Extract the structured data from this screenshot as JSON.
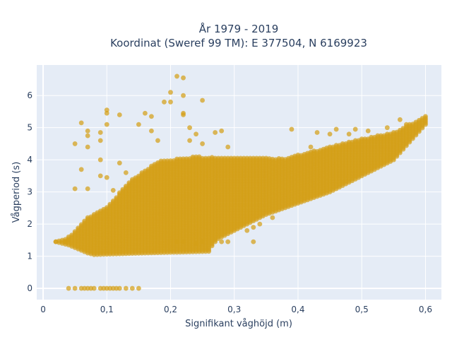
{
  "chart_data": {
    "type": "scatter",
    "title": [
      "År 1979 - 2019",
      "Koordinat (Sweref 99 TM): E 377504, N 6169923"
    ],
    "xlabel": "Signifikant våghöjd (m)",
    "ylabel": "Vågperiod (s)",
    "xlim": [
      -0.01,
      0.625
    ],
    "ylim": [
      -0.35,
      6.95
    ],
    "xticks": [
      0,
      0.1,
      0.2,
      0.3,
      0.4,
      0.5,
      0.6
    ],
    "xtick_labels": [
      "0",
      "0,1",
      "0,2",
      "0,3",
      "0,4",
      "0,5",
      "0,6"
    ],
    "yticks": [
      0,
      1,
      2,
      3,
      4,
      5,
      6
    ],
    "ytick_labels": [
      "0",
      "1",
      "2",
      "3",
      "4",
      "5",
      "6"
    ],
    "grid": true,
    "background": "#e5ecf6",
    "marker_color": "#d4a017",
    "band": {
      "x_step": 0.005,
      "x_start": 0.02,
      "x_end": 0.6,
      "lower": [
        [
          0.02,
          1.45
        ],
        [
          0.04,
          1.35
        ],
        [
          0.07,
          1.1
        ],
        [
          0.08,
          1.05
        ],
        [
          0.16,
          1.1
        ],
        [
          0.26,
          1.15
        ],
        [
          0.27,
          1.5
        ],
        [
          0.35,
          2.3
        ],
        [
          0.45,
          3.0
        ],
        [
          0.55,
          4.0
        ],
        [
          0.6,
          5.1
        ]
      ],
      "upper": [
        [
          0.02,
          1.45
        ],
        [
          0.04,
          1.6
        ],
        [
          0.07,
          2.2
        ],
        [
          0.1,
          2.55
        ],
        [
          0.14,
          3.4
        ],
        [
          0.18,
          3.95
        ],
        [
          0.24,
          4.1
        ],
        [
          0.32,
          4.05
        ],
        [
          0.38,
          4.05
        ],
        [
          0.45,
          4.4
        ],
        [
          0.5,
          4.65
        ],
        [
          0.55,
          4.85
        ],
        [
          0.6,
          5.35
        ]
      ]
    },
    "series": [
      {
        "values": [
          [
            0.02,
            1.45
          ],
          [
            0.04,
            1.5
          ],
          [
            0.035,
            1.45
          ],
          [
            0.21,
            1.45
          ],
          [
            0.22,
            1.45
          ],
          [
            0.24,
            1.4
          ],
          [
            0.25,
            1.45
          ],
          [
            0.27,
            1.45
          ],
          [
            0.28,
            1.45
          ],
          [
            0.29,
            1.45
          ],
          [
            0.33,
            1.45
          ],
          [
            0.32,
            1.8
          ],
          [
            0.33,
            1.9
          ],
          [
            0.34,
            2.0
          ],
          [
            0.36,
            2.2
          ],
          [
            0.05,
            4.5
          ],
          [
            0.06,
            5.15
          ],
          [
            0.07,
            4.9
          ],
          [
            0.07,
            4.75
          ],
          [
            0.07,
            4.4
          ],
          [
            0.06,
            3.7
          ],
          [
            0.05,
            3.1
          ],
          [
            0.07,
            3.1
          ],
          [
            0.09,
            4.85
          ],
          [
            0.09,
            4.6
          ],
          [
            0.09,
            4.0
          ],
          [
            0.09,
            3.5
          ],
          [
            0.1,
            5.55
          ],
          [
            0.1,
            5.45
          ],
          [
            0.1,
            5.1
          ],
          [
            0.1,
            3.45
          ],
          [
            0.11,
            3.05
          ],
          [
            0.12,
            5.4
          ],
          [
            0.12,
            3.9
          ],
          [
            0.13,
            3.6
          ],
          [
            0.15,
            5.1
          ],
          [
            0.16,
            5.45
          ],
          [
            0.17,
            5.35
          ],
          [
            0.17,
            4.9
          ],
          [
            0.18,
            4.6
          ],
          [
            0.19,
            5.8
          ],
          [
            0.2,
            6.1
          ],
          [
            0.2,
            5.8
          ],
          [
            0.21,
            6.6
          ],
          [
            0.22,
            6.55
          ],
          [
            0.22,
            6.0
          ],
          [
            0.22,
            5.45
          ],
          [
            0.22,
            5.4
          ],
          [
            0.23,
            5.0
          ],
          [
            0.23,
            4.6
          ],
          [
            0.24,
            4.8
          ],
          [
            0.25,
            5.85
          ],
          [
            0.25,
            4.5
          ],
          [
            0.27,
            4.85
          ],
          [
            0.28,
            4.9
          ],
          [
            0.29,
            4.4
          ],
          [
            0.39,
            4.95
          ],
          [
            0.42,
            4.4
          ],
          [
            0.43,
            4.85
          ],
          [
            0.45,
            4.8
          ],
          [
            0.46,
            4.95
          ],
          [
            0.48,
            4.8
          ],
          [
            0.49,
            4.95
          ],
          [
            0.51,
            4.9
          ],
          [
            0.56,
            5.25
          ],
          [
            0.57,
            5.1
          ],
          [
            0.54,
            5.0
          ]
        ]
      },
      {
        "values": [
          [
            0.04,
            0
          ],
          [
            0.05,
            0
          ],
          [
            0.06,
            0
          ],
          [
            0.065,
            0
          ],
          [
            0.07,
            0
          ],
          [
            0.075,
            0
          ],
          [
            0.08,
            0
          ],
          [
            0.09,
            0
          ],
          [
            0.095,
            0
          ],
          [
            0.1,
            0
          ],
          [
            0.105,
            0
          ],
          [
            0.11,
            0
          ],
          [
            0.115,
            0
          ],
          [
            0.12,
            0
          ],
          [
            0.13,
            0
          ],
          [
            0.14,
            0
          ],
          [
            0.15,
            0
          ]
        ]
      }
    ]
  }
}
